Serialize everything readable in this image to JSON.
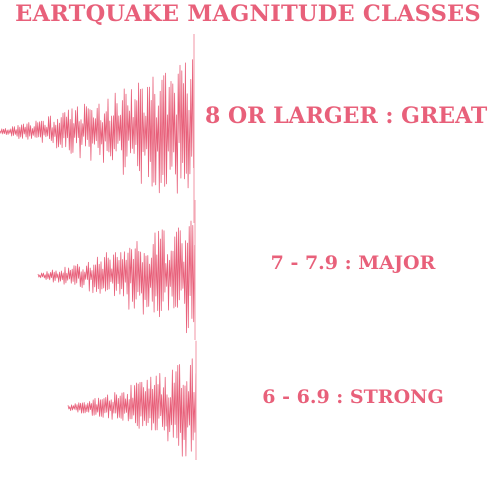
{
  "title": "EARTQUAKE MAGNITUDE CLASSES",
  "accent_color": "#e8607a",
  "light_color": "#f3a7b4",
  "classes": [
    {
      "label": "8 OR LARGER : GREAT",
      "icon": "seismic-wave-icon"
    },
    {
      "label": "7 - 7.9 : MAJOR",
      "icon": "seismic-wave-icon"
    },
    {
      "label": "6 - 6.9 : STRONG",
      "icon": "seismic-wave-icon"
    }
  ]
}
